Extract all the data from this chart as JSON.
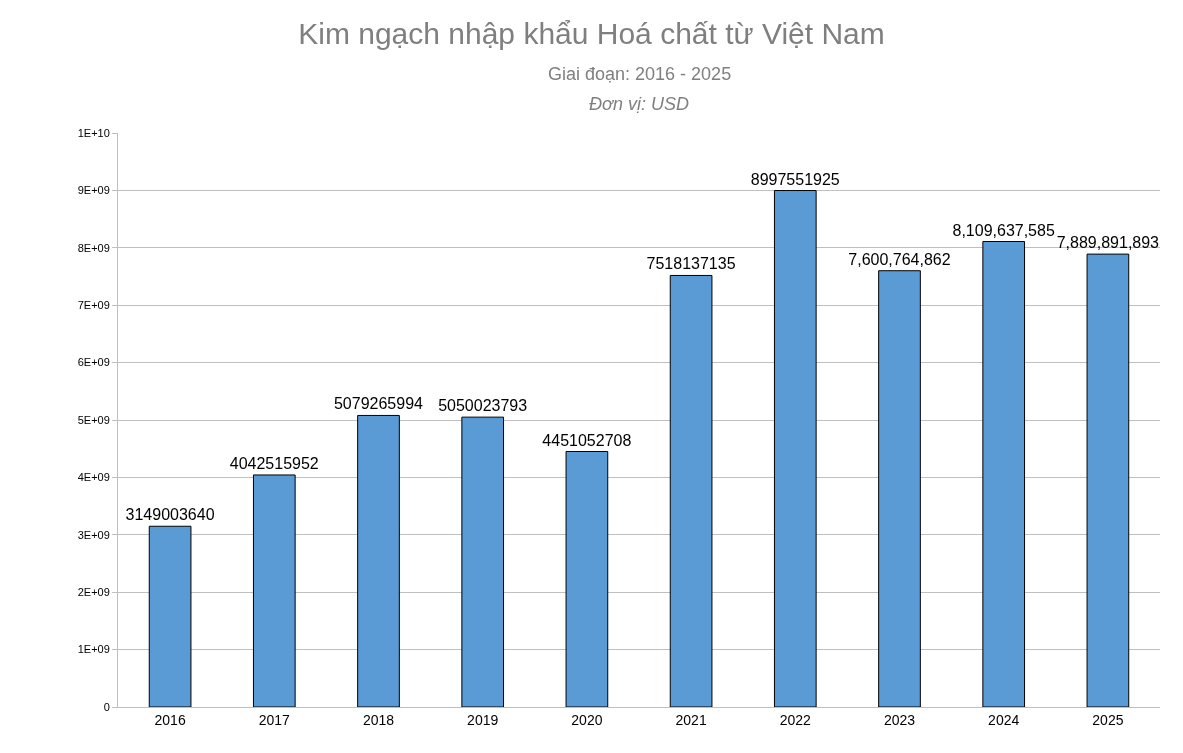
{
  "chart_data": {
    "type": "bar",
    "title": "Kim ngạch nhập khẩu Hoá chất từ Việt Nam",
    "subtitle": "Giai đoạn: 2016 - 2025",
    "annotations": [
      "Đơn vị: USD"
    ],
    "categories": [
      "2016",
      "2017",
      "2018",
      "2019",
      "2020",
      "2021",
      "2022",
      "2023",
      "2024",
      "2025"
    ],
    "values": [
      3149003640,
      4042515952,
      5079265994,
      5050023793,
      4451052708,
      7518137135,
      8997551925,
      7600764862,
      8109637585,
      7889891893
    ],
    "value_labels": [
      "3149003640",
      "4042515952",
      "5079265994",
      "5050023793",
      "4451052708",
      "7518137135",
      "8997551925",
      "7,600,764,862",
      "8,109,637,585",
      "7,889,891,893"
    ],
    "color": "#5b9bd5",
    "ylim": [
      0,
      10000000000
    ],
    "yticks": [
      0,
      {
        "value": 1000000000,
        "label": "1E+09"
      },
      {
        "value": 2000000000,
        "label": "2E+09"
      },
      {
        "value": 3000000000,
        "label": "3E+09"
      },
      {
        "value": 4000000000,
        "label": "4E+09"
      },
      {
        "value": 5000000000,
        "label": "5E+09"
      },
      {
        "value": 6000000000,
        "label": "6E+09"
      },
      {
        "value": 7000000000,
        "label": "7E+09"
      },
      {
        "value": 8000000000,
        "label": "8E+09"
      },
      {
        "value": 9000000000,
        "label": "9E+09"
      },
      {
        "value": 10000000000,
        "label": "1E+10"
      }
    ],
    "grid": "y"
  }
}
